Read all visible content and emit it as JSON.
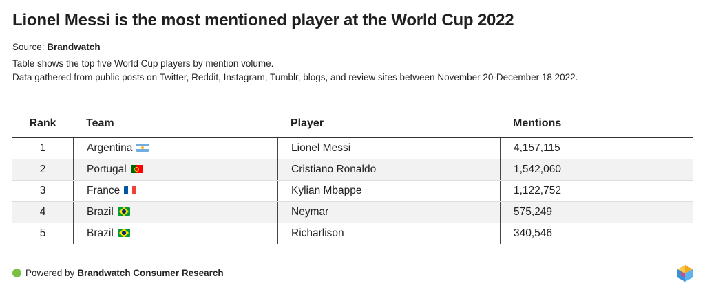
{
  "title": "Lionel Messi is the most mentioned player at the World Cup 2022",
  "source": {
    "label": "Source:",
    "name": "Brandwatch"
  },
  "description": [
    "Table shows the top five World Cup players by mention volume.",
    "Data gathered from public posts on Twitter, Reddit, Instagram, Tumblr, blogs, and review sites between November 20-December 18 2022."
  ],
  "chart_data": {
    "type": "table",
    "columns": [
      "Rank",
      "Team",
      "Player",
      "Mentions"
    ],
    "rows": [
      {
        "rank": "1",
        "team": "Argentina",
        "flag": "argentina-flag",
        "player": "Lionel Messi",
        "mentions": "4,157,115"
      },
      {
        "rank": "2",
        "team": "Portugal",
        "flag": "portugal-flag",
        "player": "Cristiano Ronaldo",
        "mentions": "1,542,060"
      },
      {
        "rank": "3",
        "team": "France",
        "flag": "france-flag",
        "player": "Kylian Mbappe",
        "mentions": "1,122,752"
      },
      {
        "rank": "4",
        "team": "Brazil",
        "flag": "brazil-flag",
        "player": "Neymar",
        "mentions": "575,249"
      },
      {
        "rank": "5",
        "team": "Brazil",
        "flag": "brazil-flag",
        "player": "Richarlison",
        "mentions": "340,546"
      }
    ]
  },
  "footer": {
    "prefix": "Powered by",
    "brand": "Brandwatch Consumer Research",
    "dot_color": "#7ac143"
  }
}
